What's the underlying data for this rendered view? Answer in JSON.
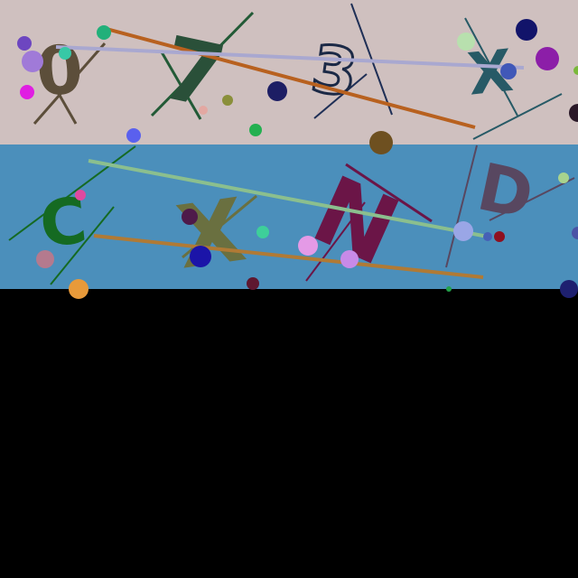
{
  "background": {
    "top_band_color": "#cfc0bf",
    "bottom_band_color": "#4b8fbb",
    "empty_area_color": "#000000"
  },
  "glyphs": [
    {
      "text": "0",
      "color": "#5c4e3a"
    },
    {
      "text": "7",
      "color": "#2a5039"
    },
    {
      "text": "3",
      "color": "#1b2946"
    },
    {
      "text": "X",
      "color": "#275a66"
    },
    {
      "text": "C",
      "color": "#156a22"
    },
    {
      "text": "X",
      "color": "#6a7040"
    },
    {
      "text": "N",
      "color": "#6b1547"
    },
    {
      "text": "D",
      "color": "#584760"
    }
  ],
  "palette": {
    "orange_line": "#b8611f",
    "lavender_line": "#a9a8d0",
    "sage_line": "#8bbf8e",
    "brown_line": "#b07a35",
    "dark_green_line": "#225a36",
    "navy_line": "#1f2f56"
  }
}
